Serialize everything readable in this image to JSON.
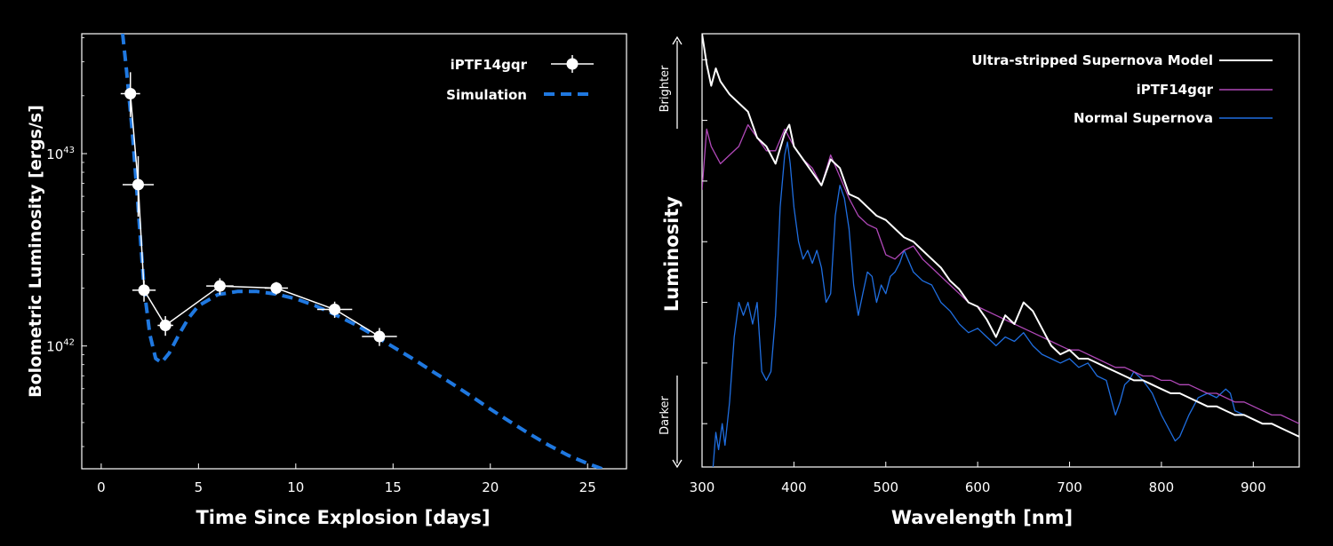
{
  "chart_data": [
    {
      "type": "line",
      "xlabel": "Time Since Explosion [days]",
      "ylabel": "Bolometric Luminosity [ergs/s]",
      "xlim": [
        -1,
        27
      ],
      "ylim": [
        2.3e+41,
        4.2e+43
      ],
      "yscale": "log",
      "xticks": [
        0,
        5,
        10,
        15,
        20,
        25
      ],
      "xtick_labels": [
        "0",
        "5",
        "10",
        "15",
        "20",
        "25"
      ],
      "yticks": [
        {
          "value": 1e+43,
          "base": "10",
          "exp": "43"
        },
        {
          "value": 1e+42,
          "base": "10",
          "exp": "42"
        }
      ],
      "legend_position": "top-right",
      "observations": {
        "name": "iPTF14gqr",
        "color": "#ffffff",
        "x": [
          1.5,
          1.9,
          2.2,
          3.3,
          6.1,
          9.0,
          12.0,
          14.3
        ],
        "y": [
          2.05e+43,
          6.9e+42,
          1.95e+42,
          1.28e+42,
          2.05e+42,
          2e+42,
          1.55e+42,
          1.12e+42
        ],
        "x_err": [
          0.5,
          0.8,
          0.6,
          0.4,
          0.7,
          0.6,
          0.9,
          0.9
        ],
        "y_err_low": [
          5e+42,
          2.2e+42,
          2.5e+41,
          1.5e+41,
          2e+41,
          1.5e+41,
          1.5e+41,
          1.2e+41
        ],
        "y_err_high": [
          6e+42,
          2.8e+42,
          2.5e+41,
          1.5e+41,
          2e+41,
          1.5e+41,
          1.5e+41,
          1.2e+41
        ]
      },
      "simulation": {
        "name": "Simulation",
        "color": "#1f78e0",
        "x": [
          1.1,
          1.3,
          1.6,
          1.9,
          2.2,
          2.5,
          2.8,
          3.1,
          3.5,
          4.0,
          4.5,
          5.0,
          6.0,
          7.0,
          8.0,
          9.0,
          10.0,
          11.0,
          12.0,
          13.0,
          14.0,
          15.0,
          16.0,
          17.0,
          18.0,
          19.0,
          20.0,
          21.0,
          22.0,
          23.0,
          24.0,
          25.0,
          26.0,
          27.0
        ],
        "y": [
          4.2e+43,
          2.7e+43,
          1.3e+43,
          5.2e+42,
          2e+42,
          1.15e+42,
          8.6e+41,
          8.2e+41,
          9.2e+41,
          1.15e+42,
          1.4e+42,
          1.62e+42,
          1.85e+42,
          1.92e+42,
          1.92e+42,
          1.86e+42,
          1.76e+42,
          1.62e+42,
          1.46e+42,
          1.3e+42,
          1.14e+42,
          9.9e+41,
          8.6e+41,
          7.4e+41,
          6.4e+41,
          5.5e+41,
          4.7e+41,
          4.05e+41,
          3.5e+41,
          3.05e+41,
          2.7e+41,
          2.45e+41,
          2.25e+41,
          2.1e+41
        ]
      }
    },
    {
      "type": "line",
      "xlabel": "Wavelength [nm]",
      "ylabel": "Luminosity",
      "xlim": [
        300,
        950
      ],
      "ylim": [
        0,
        1
      ],
      "xticks": [
        300,
        400,
        500,
        600,
        700,
        800,
        900
      ],
      "xtick_labels": [
        "300",
        "400",
        "500",
        "600",
        "700",
        "800",
        "900"
      ],
      "yticks": [
        0.1,
        0.24,
        0.38,
        0.52,
        0.66,
        0.8,
        0.94
      ],
      "annotations": {
        "top": "Brighter",
        "bottom": "Darker"
      },
      "legend_position": "top-right",
      "series": [
        {
          "name": "Ultra-stripped Supernova Model",
          "color": "#ffffff",
          "x": [
            300,
            305,
            310,
            315,
            320,
            330,
            340,
            350,
            360,
            370,
            380,
            390,
            395,
            400,
            410,
            420,
            430,
            440,
            450,
            460,
            470,
            480,
            490,
            500,
            510,
            520,
            530,
            540,
            550,
            560,
            570,
            580,
            590,
            600,
            610,
            620,
            630,
            640,
            650,
            660,
            670,
            680,
            690,
            700,
            710,
            720,
            730,
            740,
            750,
            760,
            770,
            780,
            790,
            800,
            810,
            820,
            830,
            840,
            850,
            860,
            870,
            880,
            890,
            900,
            910,
            920,
            930,
            940,
            950
          ],
          "y": [
            1.0,
            0.93,
            0.88,
            0.92,
            0.89,
            0.86,
            0.84,
            0.82,
            0.76,
            0.74,
            0.7,
            0.77,
            0.79,
            0.74,
            0.71,
            0.68,
            0.65,
            0.71,
            0.69,
            0.63,
            0.62,
            0.6,
            0.58,
            0.57,
            0.55,
            0.53,
            0.52,
            0.5,
            0.48,
            0.46,
            0.43,
            0.41,
            0.38,
            0.37,
            0.34,
            0.3,
            0.35,
            0.33,
            0.38,
            0.36,
            0.32,
            0.28,
            0.26,
            0.27,
            0.25,
            0.25,
            0.24,
            0.23,
            0.22,
            0.21,
            0.2,
            0.2,
            0.19,
            0.18,
            0.17,
            0.17,
            0.16,
            0.15,
            0.14,
            0.14,
            0.13,
            0.12,
            0.12,
            0.11,
            0.1,
            0.1,
            0.09,
            0.08,
            0.07
          ]
        },
        {
          "name": "iPTF14gqr",
          "color": "#b048b8",
          "x": [
            300,
            305,
            310,
            320,
            330,
            340,
            350,
            360,
            370,
            380,
            390,
            400,
            410,
            420,
            430,
            440,
            450,
            460,
            470,
            480,
            490,
            500,
            510,
            520,
            530,
            540,
            550,
            560,
            570,
            580,
            590,
            600,
            610,
            620,
            630,
            640,
            650,
            660,
            670,
            680,
            690,
            700,
            710,
            720,
            730,
            740,
            750,
            760,
            770,
            780,
            790,
            800,
            810,
            820,
            830,
            840,
            850,
            860,
            870,
            880,
            890,
            900,
            910,
            920,
            930,
            940,
            950
          ],
          "y": [
            0.64,
            0.78,
            0.74,
            0.7,
            0.72,
            0.74,
            0.79,
            0.76,
            0.73,
            0.73,
            0.78,
            0.74,
            0.71,
            0.69,
            0.65,
            0.72,
            0.67,
            0.62,
            0.58,
            0.56,
            0.55,
            0.49,
            0.48,
            0.5,
            0.51,
            0.48,
            0.46,
            0.44,
            0.42,
            0.4,
            0.38,
            0.37,
            0.36,
            0.35,
            0.34,
            0.33,
            0.32,
            0.31,
            0.3,
            0.29,
            0.28,
            0.27,
            0.27,
            0.26,
            0.25,
            0.24,
            0.23,
            0.23,
            0.22,
            0.21,
            0.21,
            0.2,
            0.2,
            0.19,
            0.19,
            0.18,
            0.17,
            0.17,
            0.16,
            0.15,
            0.15,
            0.14,
            0.13,
            0.12,
            0.12,
            0.11,
            0.1
          ]
        },
        {
          "name": "Normal Supernova",
          "color": "#1f6ee0",
          "x": [
            312,
            315,
            318,
            322,
            325,
            330,
            335,
            340,
            345,
            350,
            355,
            360,
            365,
            370,
            375,
            380,
            385,
            390,
            393,
            396,
            400,
            405,
            410,
            415,
            420,
            425,
            430,
            435,
            440,
            445,
            450,
            455,
            460,
            465,
            470,
            475,
            480,
            485,
            490,
            495,
            500,
            505,
            510,
            515,
            520,
            530,
            540,
            550,
            560,
            570,
            580,
            590,
            600,
            610,
            620,
            630,
            640,
            650,
            660,
            670,
            680,
            690,
            700,
            710,
            720,
            730,
            740,
            750,
            755,
            760,
            765,
            770,
            780,
            790,
            800,
            810,
            815,
            820,
            830,
            840,
            850,
            860,
            870,
            875,
            880,
            890,
            900,
            910,
            920
          ],
          "y": [
            0.0,
            0.08,
            0.04,
            0.1,
            0.05,
            0.15,
            0.3,
            0.38,
            0.35,
            0.38,
            0.33,
            0.38,
            0.22,
            0.2,
            0.22,
            0.35,
            0.6,
            0.72,
            0.75,
            0.7,
            0.6,
            0.52,
            0.48,
            0.5,
            0.47,
            0.5,
            0.46,
            0.38,
            0.4,
            0.58,
            0.65,
            0.62,
            0.55,
            0.42,
            0.35,
            0.4,
            0.45,
            0.44,
            0.38,
            0.42,
            0.4,
            0.44,
            0.45,
            0.47,
            0.5,
            0.45,
            0.43,
            0.42,
            0.38,
            0.36,
            0.33,
            0.31,
            0.32,
            0.3,
            0.28,
            0.3,
            0.29,
            0.31,
            0.28,
            0.26,
            0.25,
            0.24,
            0.25,
            0.23,
            0.24,
            0.21,
            0.2,
            0.12,
            0.15,
            0.19,
            0.2,
            0.22,
            0.2,
            0.17,
            0.12,
            0.08,
            0.06,
            0.07,
            0.12,
            0.16,
            0.17,
            0.16,
            0.18,
            0.17,
            0.13,
            0.12,
            0.11,
            0.1,
            0.1
          ]
        }
      ]
    }
  ]
}
